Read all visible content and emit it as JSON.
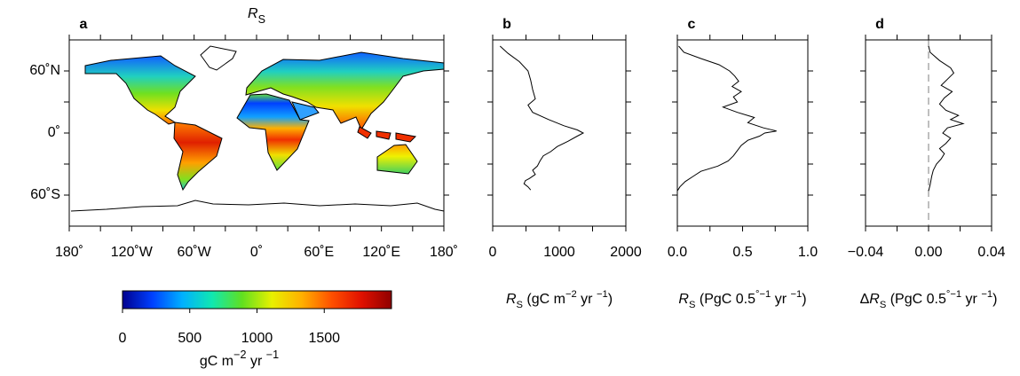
{
  "chart_data": [
    {
      "type": "map",
      "panel_label": "a",
      "title": [
        {
          "text": "R",
          "style": "italic"
        },
        {
          "text": "S",
          "style": "sub"
        }
      ],
      "xlim": [
        -180,
        180
      ],
      "ylim": [
        -90,
        90
      ],
      "xticks": [
        {
          "value": -180,
          "label": "180˚"
        },
        {
          "value": -120,
          "label": "120˚W"
        },
        {
          "value": -60,
          "label": "60˚W"
        },
        {
          "value": 0,
          "label": "0˚"
        },
        {
          "value": 60,
          "label": "60˚E"
        },
        {
          "value": 120,
          "label": "120˚E"
        },
        {
          "value": 180,
          "label": "180˚"
        }
      ],
      "minor_xticks": [
        -150,
        -90,
        -30,
        30,
        90,
        150
      ],
      "yticks": [
        {
          "value": 60,
          "label": "60˚N"
        },
        {
          "value": 0,
          "label": "0˚"
        },
        {
          "value": -60,
          "label": "60˚S"
        }
      ],
      "minor_yticks": [
        -30,
        30
      ],
      "colorbar": {
        "colors": [
          "#00008f",
          "#0040ff",
          "#00b0ff",
          "#10e8b0",
          "#60e020",
          "#e8f000",
          "#ffb000",
          "#ff5000",
          "#e01000",
          "#8f0000"
        ],
        "lim": [
          0,
          2000
        ],
        "ticks": [
          0,
          500,
          1000,
          1500
        ],
        "label": [
          {
            "text": "gC m"
          },
          {
            "text": "−2",
            "style": "super"
          },
          {
            "text": " yr "
          },
          {
            "text": "−1",
            "style": "super"
          }
        ]
      }
    },
    {
      "type": "line",
      "panel_label": "b",
      "xlabel": [
        {
          "text": "R",
          "style": "italic"
        },
        {
          "text": "S",
          "style": "sub"
        },
        {
          "text": " (gC m"
        },
        {
          "text": "−2",
          "style": "super"
        },
        {
          "text": " yr "
        },
        {
          "text": "−1",
          "style": "super"
        },
        {
          "text": ")"
        }
      ],
      "xlim": [
        0,
        2000
      ],
      "xticks": [
        0,
        1000,
        2000
      ],
      "minor_xticks": [
        500,
        1500
      ],
      "ylim": [
        -90,
        90
      ],
      "yticks": [
        -60,
        0,
        60
      ],
      "minor_yticks": [
        -30,
        30
      ],
      "ytick_labels": false,
      "color": "#000000",
      "lat": [
        84,
        77,
        69,
        60,
        51,
        42,
        33,
        27,
        20,
        13,
        7,
        3,
        0,
        -3,
        -8,
        -13,
        -18,
        -22,
        -27,
        -32,
        -36,
        -40,
        -44,
        -46,
        -49,
        -52,
        -55
      ],
      "values": [
        110,
        230,
        400,
        530,
        570,
        600,
        640,
        530,
        600,
        840,
        1070,
        1270,
        1360,
        1270,
        1130,
        970,
        870,
        760,
        710,
        670,
        600,
        640,
        550,
        490,
        470,
        530,
        570
      ]
    },
    {
      "type": "line",
      "panel_label": "c",
      "xlabel": [
        {
          "text": "R",
          "style": "italic"
        },
        {
          "text": "S",
          "style": "sub"
        },
        {
          "text": " (PgC 0.5"
        },
        {
          "text": "°−1",
          "style": "super"
        },
        {
          "text": " yr "
        },
        {
          "text": "−1",
          "style": "super"
        },
        {
          "text": ")"
        }
      ],
      "xlim": [
        0,
        1
      ],
      "xticks": [
        {
          "value": 0,
          "label": "0.0"
        },
        {
          "value": 0.5,
          "label": "0.5"
        },
        {
          "value": 1,
          "label": "1.0"
        }
      ],
      "minor_xticks": [
        0.25,
        0.75
      ],
      "ylim": [
        -90,
        90
      ],
      "yticks": [
        -60,
        0,
        60
      ],
      "minor_yticks": [
        -30,
        30
      ],
      "ytick_labels": false,
      "color": "#000000",
      "lat": [
        84,
        78,
        72,
        66,
        60,
        55,
        50,
        45,
        40,
        35,
        30,
        25,
        20,
        15,
        10,
        5,
        2,
        0,
        -3,
        -7,
        -12,
        -17,
        -22,
        -27,
        -32,
        -37,
        -42,
        -47,
        -52,
        -56
      ],
      "values": [
        0.01,
        0.05,
        0.18,
        0.32,
        0.4,
        0.44,
        0.47,
        0.42,
        0.49,
        0.43,
        0.46,
        0.35,
        0.46,
        0.59,
        0.54,
        0.66,
        0.76,
        0.67,
        0.63,
        0.54,
        0.49,
        0.46,
        0.43,
        0.39,
        0.31,
        0.18,
        0.12,
        0.06,
        0.02,
        0
      ]
    },
    {
      "type": "line",
      "panel_label": "d",
      "xlabel": [
        {
          "text": "Δ"
        },
        {
          "text": "R",
          "style": "italic"
        },
        {
          "text": "S",
          "style": "sub"
        },
        {
          "text": " (PgC 0.5"
        },
        {
          "text": "°−1",
          "style": "super"
        },
        {
          "text": " yr "
        },
        {
          "text": "−1",
          "style": "super"
        },
        {
          "text": ")"
        }
      ],
      "xlim": [
        -0.04,
        0.04
      ],
      "xticks": [
        {
          "value": -0.04,
          "label": "−0.04"
        },
        {
          "value": 0,
          "label": "0.00"
        },
        {
          "value": 0.04,
          "label": "0.04"
        }
      ],
      "minor_xticks": [
        -0.02,
        0.02
      ],
      "ylim": [
        -90,
        90
      ],
      "yticks": [
        -60,
        0,
        60
      ],
      "minor_yticks": [
        -30,
        30
      ],
      "ytick_labels": false,
      "color": "#000000",
      "zero_line": true,
      "lat": [
        84,
        78,
        70,
        63,
        58,
        52,
        46,
        40,
        34,
        28,
        22,
        17,
        13,
        9,
        5,
        0,
        -5,
        -10,
        -15,
        -20,
        -25,
        -30,
        -36,
        -42,
        -50,
        -56
      ],
      "values": [
        0,
        0.001,
        0.007,
        0.014,
        0.016,
        0.012,
        0.008,
        0.015,
        0.01,
        0.007,
        0.011,
        0.019,
        0.014,
        0.022,
        0.012,
        0.009,
        0.014,
        0.011,
        0.007,
        0.01,
        0.008,
        0.005,
        0.003,
        0.002,
        0.001,
        0
      ]
    }
  ]
}
